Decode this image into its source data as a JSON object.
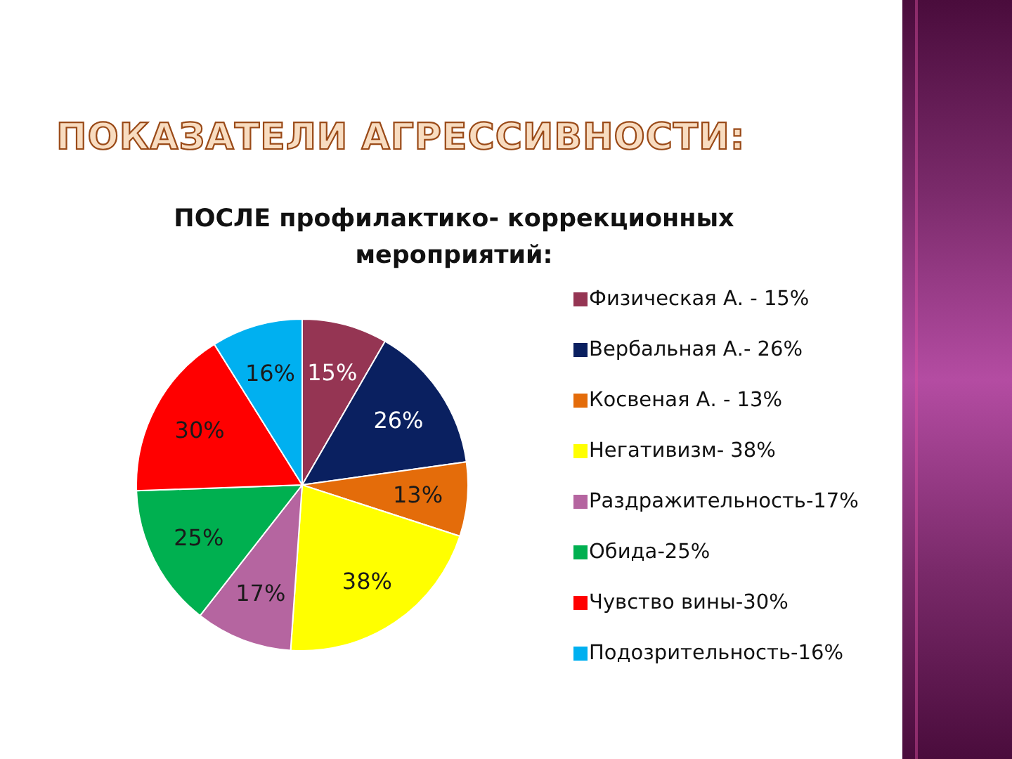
{
  "chart_data": {
    "type": "pie",
    "title": "ПОКАЗАТЕЛИ АГРЕССИВНОСТИ:",
    "subtitle": "ПОСЛЕ профилактико- коррекционных мероприятий:",
    "categories": [
      "Физическая А. - 15%",
      "Вербальная А.- 26%",
      "Косвеная А. - 13%",
      "Негативизм- 38%",
      "Раздражительность-17%",
      "Обида-25%",
      "Чувство вины-30%",
      "Подозрительность-16%"
    ],
    "values": [
      15,
      26,
      13,
      38,
      17,
      25,
      30,
      16
    ],
    "colors": [
      "#953553",
      "#0a2060",
      "#e46c0a",
      "#ffff00",
      "#b565a0",
      "#00b050",
      "#ff0000",
      "#00b0f0"
    ],
    "value_labels": [
      "15%",
      "26%",
      "13%",
      "38%",
      "17%",
      "25%",
      "30%",
      "16%"
    ],
    "legend": "right"
  }
}
